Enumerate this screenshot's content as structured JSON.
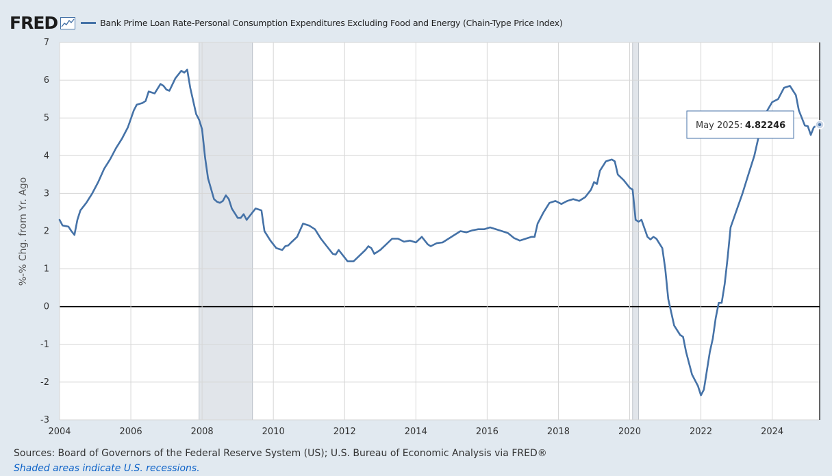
{
  "header": {
    "logo_text": "FRED",
    "legend_label": "Bank Prime Loan Rate-Personal Consumption Expenditures Excluding Food and Energy (Chain-Type Price Index)"
  },
  "footer": {
    "sources": "Sources: Board of Governors of the Federal Reserve System (US); U.S. Bureau of Economic Analysis via FRED®",
    "recessions_note": "Shaded areas indicate U.S. recessions."
  },
  "tooltip": {
    "date_label": "May 2025:",
    "value_label": "4.82246"
  },
  "colors": {
    "series": "#4572a7",
    "background": "#e1e9f0",
    "plot": "#ffffff",
    "recession": "#e1e5ea"
  },
  "chart_data": {
    "type": "line",
    "title": "",
    "xlabel": "",
    "ylabel": "%-% Chg. from Yr. Ago",
    "ylim": [
      -3,
      7
    ],
    "xlim": [
      "2004-01",
      "2025-05"
    ],
    "yticks": [
      -3,
      -2,
      -1,
      0,
      1,
      2,
      3,
      4,
      5,
      6,
      7
    ],
    "xticks": [
      "2004",
      "2006",
      "2008",
      "2010",
      "2012",
      "2014",
      "2016",
      "2018",
      "2020",
      "2022",
      "2024"
    ],
    "grid": true,
    "recessions": [
      {
        "start": "2007-12",
        "end": "2009-06"
      },
      {
        "start": "2020-02",
        "end": "2020-04"
      }
    ],
    "series": [
      {
        "name": "Bank Prime Loan Rate-Personal Consumption Expenditures Excluding Food and Energy (Chain-Type Price Index)",
        "points": [
          [
            "2004-01",
            2.3
          ],
          [
            "2004-02",
            2.15
          ],
          [
            "2004-04",
            2.12
          ],
          [
            "2004-05",
            2.0
          ],
          [
            "2004-06",
            1.9
          ],
          [
            "2004-07",
            2.3
          ],
          [
            "2004-08",
            2.55
          ],
          [
            "2004-10",
            2.75
          ],
          [
            "2004-12",
            3.0
          ],
          [
            "2005-02",
            3.3
          ],
          [
            "2005-04",
            3.65
          ],
          [
            "2005-06",
            3.9
          ],
          [
            "2005-08",
            4.2
          ],
          [
            "2005-10",
            4.45
          ],
          [
            "2005-12",
            4.75
          ],
          [
            "2006-02",
            5.2
          ],
          [
            "2006-03",
            5.35
          ],
          [
            "2006-05",
            5.4
          ],
          [
            "2006-06",
            5.45
          ],
          [
            "2006-07",
            5.7
          ],
          [
            "2006-09",
            5.65
          ],
          [
            "2006-11",
            5.9
          ],
          [
            "2006-12",
            5.85
          ],
          [
            "2007-01",
            5.75
          ],
          [
            "2007-02",
            5.72
          ],
          [
            "2007-04",
            6.05
          ],
          [
            "2007-06",
            6.25
          ],
          [
            "2007-07",
            6.2
          ],
          [
            "2007-08",
            6.28
          ],
          [
            "2007-09",
            5.8
          ],
          [
            "2007-11",
            5.1
          ],
          [
            "2007-12",
            4.95
          ],
          [
            "2008-01",
            4.7
          ],
          [
            "2008-02",
            3.95
          ],
          [
            "2008-03",
            3.4
          ],
          [
            "2008-05",
            2.85
          ],
          [
            "2008-06",
            2.78
          ],
          [
            "2008-07",
            2.75
          ],
          [
            "2008-08",
            2.8
          ],
          [
            "2008-09",
            2.95
          ],
          [
            "2008-10",
            2.85
          ],
          [
            "2008-11",
            2.6
          ],
          [
            "2009-01",
            2.35
          ],
          [
            "2009-02",
            2.35
          ],
          [
            "2009-03",
            2.45
          ],
          [
            "2009-04",
            2.3
          ],
          [
            "2009-05",
            2.4
          ],
          [
            "2009-07",
            2.6
          ],
          [
            "2009-09",
            2.55
          ],
          [
            "2009-10",
            2.0
          ],
          [
            "2009-12",
            1.75
          ],
          [
            "2010-02",
            1.55
          ],
          [
            "2010-04",
            1.5
          ],
          [
            "2010-05",
            1.6
          ],
          [
            "2010-06",
            1.62
          ],
          [
            "2010-07",
            1.7
          ],
          [
            "2010-09",
            1.85
          ],
          [
            "2010-11",
            2.2
          ],
          [
            "2011-01",
            2.15
          ],
          [
            "2011-03",
            2.05
          ],
          [
            "2011-05",
            1.8
          ],
          [
            "2011-07",
            1.6
          ],
          [
            "2011-09",
            1.4
          ],
          [
            "2011-10",
            1.38
          ],
          [
            "2011-11",
            1.5
          ],
          [
            "2012-01",
            1.3
          ],
          [
            "2012-02",
            1.2
          ],
          [
            "2012-04",
            1.2
          ],
          [
            "2012-06",
            1.35
          ],
          [
            "2012-08",
            1.5
          ],
          [
            "2012-09",
            1.6
          ],
          [
            "2012-10",
            1.55
          ],
          [
            "2012-11",
            1.4
          ],
          [
            "2013-01",
            1.5
          ],
          [
            "2013-03",
            1.65
          ],
          [
            "2013-05",
            1.8
          ],
          [
            "2013-07",
            1.8
          ],
          [
            "2013-09",
            1.72
          ],
          [
            "2013-11",
            1.75
          ],
          [
            "2014-01",
            1.7
          ],
          [
            "2014-03",
            1.85
          ],
          [
            "2014-05",
            1.65
          ],
          [
            "2014-06",
            1.6
          ],
          [
            "2014-08",
            1.68
          ],
          [
            "2014-10",
            1.7
          ],
          [
            "2014-12",
            1.8
          ],
          [
            "2015-02",
            1.9
          ],
          [
            "2015-04",
            2.0
          ],
          [
            "2015-06",
            1.97
          ],
          [
            "2015-08",
            2.02
          ],
          [
            "2015-10",
            2.05
          ],
          [
            "2015-12",
            2.05
          ],
          [
            "2016-02",
            2.1
          ],
          [
            "2016-04",
            2.05
          ],
          [
            "2016-06",
            2.0
          ],
          [
            "2016-08",
            1.95
          ],
          [
            "2016-10",
            1.82
          ],
          [
            "2016-12",
            1.75
          ],
          [
            "2017-02",
            1.8
          ],
          [
            "2017-04",
            1.85
          ],
          [
            "2017-05",
            1.85
          ],
          [
            "2017-06",
            2.2
          ],
          [
            "2017-08",
            2.5
          ],
          [
            "2017-10",
            2.75
          ],
          [
            "2017-12",
            2.8
          ],
          [
            "2018-02",
            2.72
          ],
          [
            "2018-04",
            2.8
          ],
          [
            "2018-06",
            2.85
          ],
          [
            "2018-08",
            2.8
          ],
          [
            "2018-10",
            2.9
          ],
          [
            "2018-12",
            3.1
          ],
          [
            "2019-01",
            3.3
          ],
          [
            "2019-02",
            3.25
          ],
          [
            "2019-03",
            3.6
          ],
          [
            "2019-05",
            3.85
          ],
          [
            "2019-07",
            3.9
          ],
          [
            "2019-08",
            3.85
          ],
          [
            "2019-09",
            3.5
          ],
          [
            "2019-11",
            3.35
          ],
          [
            "2020-01",
            3.15
          ],
          [
            "2020-02",
            3.1
          ],
          [
            "2020-03",
            2.3
          ],
          [
            "2020-04",
            2.25
          ],
          [
            "2020-05",
            2.3
          ],
          [
            "2020-07",
            1.85
          ],
          [
            "2020-08",
            1.78
          ],
          [
            "2020-09",
            1.85
          ],
          [
            "2020-10",
            1.8
          ],
          [
            "2020-12",
            1.55
          ],
          [
            "2021-01",
            1.0
          ],
          [
            "2021-02",
            0.2
          ],
          [
            "2021-04",
            -0.5
          ],
          [
            "2021-06",
            -0.75
          ],
          [
            "2021-07",
            -0.8
          ],
          [
            "2021-08",
            -1.2
          ],
          [
            "2021-10",
            -1.8
          ],
          [
            "2021-12",
            -2.1
          ],
          [
            "2022-01",
            -2.35
          ],
          [
            "2022-02",
            -2.2
          ],
          [
            "2022-04",
            -1.2
          ],
          [
            "2022-05",
            -0.85
          ],
          [
            "2022-06",
            -0.3
          ],
          [
            "2022-07",
            0.1
          ],
          [
            "2022-08",
            0.1
          ],
          [
            "2022-09",
            0.6
          ],
          [
            "2022-10",
            1.3
          ],
          [
            "2022-11",
            2.1
          ],
          [
            "2023-01",
            2.55
          ],
          [
            "2023-03",
            3.0
          ],
          [
            "2023-05",
            3.5
          ],
          [
            "2023-07",
            4.0
          ],
          [
            "2023-09",
            4.7
          ],
          [
            "2023-11",
            5.15
          ],
          [
            "2024-01",
            5.42
          ],
          [
            "2024-03",
            5.5
          ],
          [
            "2024-05",
            5.8
          ],
          [
            "2024-07",
            5.85
          ],
          [
            "2024-09",
            5.6
          ],
          [
            "2024-10",
            5.2
          ],
          [
            "2024-12",
            4.8
          ],
          [
            "2025-01",
            4.78
          ],
          [
            "2025-02",
            4.55
          ],
          [
            "2025-03",
            4.75
          ],
          [
            "2025-04",
            4.8
          ],
          [
            "2025-05",
            4.82246
          ]
        ]
      }
    ]
  }
}
